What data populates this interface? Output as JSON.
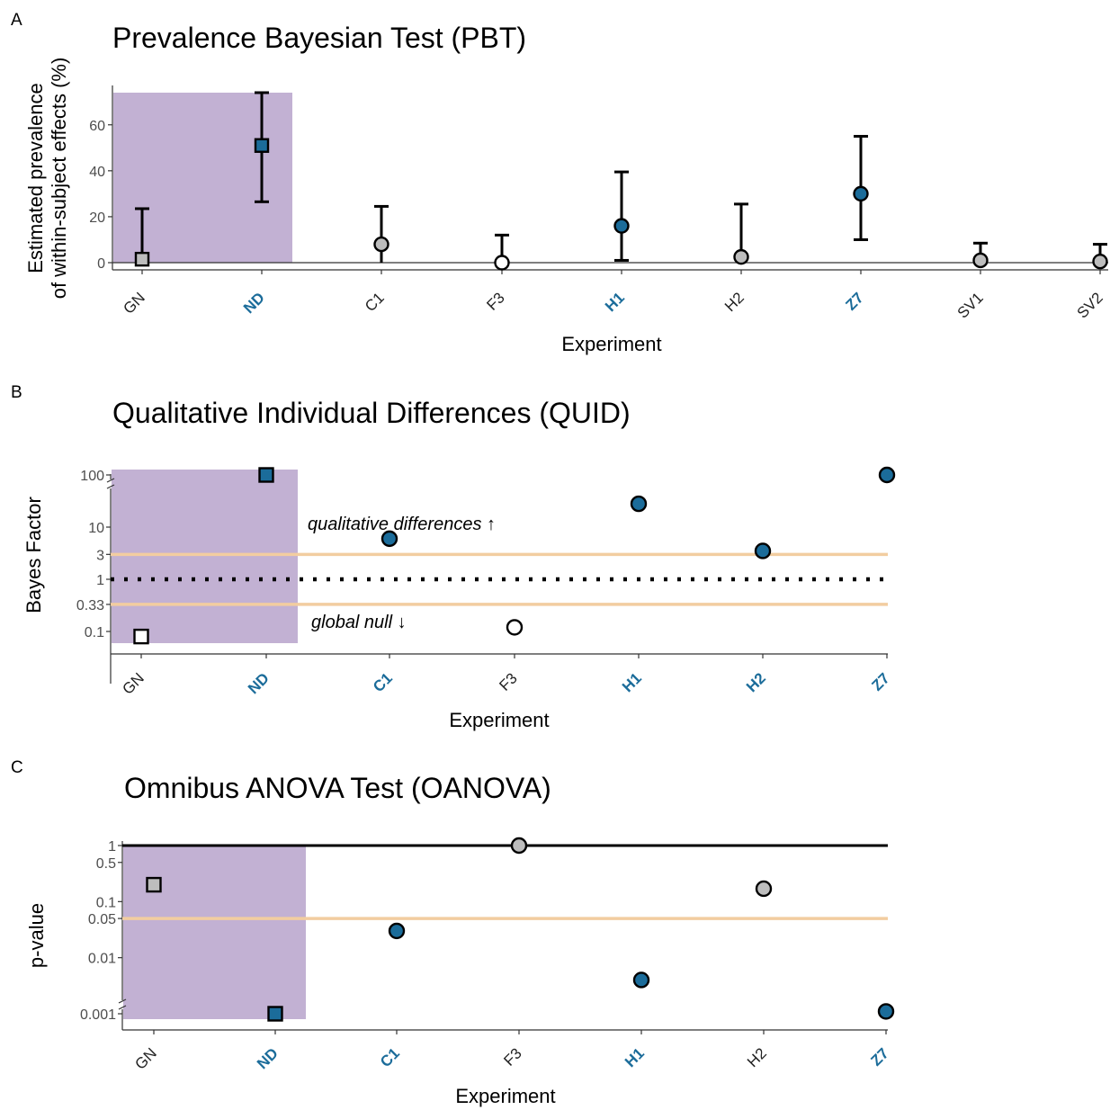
{
  "colors": {
    "shade": "#c2b1d3",
    "significant": "#1b6c9a",
    "nonsignificant": "#bdbdbd",
    "null_point": "#ffffff",
    "threshold_line": "#f2cda0",
    "sig_label": "#1b6c9a",
    "plain_label": "#222222"
  },
  "chart_data": [
    {
      "panel": "A",
      "type": "scatter",
      "title": "Prevalence Bayesian Test (PBT)",
      "xlabel": "Experiment",
      "ylabel_lines": [
        "Estimated prevalence",
        "of within-subject effects (%)"
      ],
      "ylim": [
        -3,
        75
      ],
      "yticks": [
        0,
        20,
        40,
        60
      ],
      "shaded_categories": [
        "GN",
        "ND"
      ],
      "shade_top": 74,
      "reference_line": 0,
      "categories": [
        "GN",
        "ND",
        "C1",
        "F3",
        "H1",
        "H2",
        "Z7",
        "SV1",
        "SV2"
      ],
      "label_significant": [
        false,
        true,
        false,
        false,
        true,
        false,
        true,
        false,
        false
      ],
      "points": [
        {
          "x": "GN",
          "y": 1.5,
          "low": 0,
          "high": 23.5,
          "shape": "square",
          "fill": "nonsignificant"
        },
        {
          "x": "ND",
          "y": 51,
          "low": 26.5,
          "high": 74,
          "shape": "square",
          "fill": "significant"
        },
        {
          "x": "C1",
          "y": 8,
          "low": 0,
          "high": 24.5,
          "shape": "circle",
          "fill": "nonsignificant"
        },
        {
          "x": "F3",
          "y": 0,
          "low": 0,
          "high": 12,
          "shape": "circle",
          "fill": "null_point"
        },
        {
          "x": "H1",
          "y": 16,
          "low": 1,
          "high": 39.5,
          "shape": "circle",
          "fill": "significant"
        },
        {
          "x": "H2",
          "y": 2.5,
          "low": 0,
          "high": 25.5,
          "shape": "circle",
          "fill": "nonsignificant"
        },
        {
          "x": "Z7",
          "y": 30,
          "low": 10,
          "high": 55,
          "shape": "circle",
          "fill": "significant"
        },
        {
          "x": "SV1",
          "y": 1,
          "low": 0,
          "high": 8.5,
          "shape": "circle",
          "fill": "nonsignificant"
        },
        {
          "x": "SV2",
          "y": 0.5,
          "low": 0,
          "high": 8,
          "shape": "circle",
          "fill": "nonsignificant"
        }
      ]
    },
    {
      "panel": "B",
      "type": "scatter",
      "title": "Qualitative Individual Differences (QUID)",
      "xlabel": "Experiment",
      "ylabel": "Bayes Factor",
      "scale": "log10",
      "ylim": [
        0.06,
        150
      ],
      "yticks": [
        0.1,
        0.33,
        1,
        3,
        10,
        100
      ],
      "ytick_labels": [
        "0.1",
        "0.33",
        "1",
        "3",
        "10",
        "100"
      ],
      "axis_break_at": 100,
      "shaded_categories": [
        "GN",
        "ND"
      ],
      "threshold_lines": [
        3,
        0.33
      ],
      "reference_line": 1,
      "annotations": [
        "qualitative differences ↑",
        "global null ↓"
      ],
      "categories": [
        "GN",
        "ND",
        "C1",
        "F3",
        "H1",
        "H2",
        "Z7"
      ],
      "label_significant": [
        false,
        true,
        true,
        false,
        true,
        true,
        true
      ],
      "points": [
        {
          "x": "GN",
          "y": 0.08,
          "shape": "square",
          "fill": "null_point"
        },
        {
          "x": "ND",
          "y": 100,
          "shape": "square",
          "fill": "significant"
        },
        {
          "x": "C1",
          "y": 6,
          "shape": "circle",
          "fill": "significant"
        },
        {
          "x": "F3",
          "y": 0.12,
          "shape": "circle",
          "fill": "null_point"
        },
        {
          "x": "H1",
          "y": 28,
          "shape": "circle",
          "fill": "significant"
        },
        {
          "x": "H2",
          "y": 3.5,
          "shape": "circle",
          "fill": "significant"
        },
        {
          "x": "Z7",
          "y": 100,
          "shape": "circle",
          "fill": "significant"
        }
      ]
    },
    {
      "panel": "C",
      "type": "scatter",
      "title": "Omnibus ANOVA Test (OANOVA)",
      "xlabel": "Experiment",
      "ylabel": "p-value",
      "scale": "log10",
      "ylim": [
        0.0005,
        1.3
      ],
      "yticks": [
        0.001,
        0.01,
        0.05,
        0.1,
        0.5,
        1
      ],
      "ytick_labels": [
        "0.001",
        "0.01",
        "0.05",
        "0.1",
        "0.5",
        "1"
      ],
      "axis_break_at": 0.001,
      "shaded_categories": [
        "GN",
        "ND"
      ],
      "threshold_lines": [
        0.05
      ],
      "reference_line": 1,
      "categories": [
        "GN",
        "ND",
        "C1",
        "F3",
        "H1",
        "H2",
        "Z7"
      ],
      "label_significant": [
        false,
        true,
        true,
        false,
        true,
        false,
        true
      ],
      "points": [
        {
          "x": "GN",
          "y": 0.2,
          "shape": "square",
          "fill": "nonsignificant"
        },
        {
          "x": "ND",
          "y": 0.001,
          "shape": "square",
          "fill": "significant"
        },
        {
          "x": "C1",
          "y": 0.03,
          "shape": "circle",
          "fill": "significant"
        },
        {
          "x": "F3",
          "y": 1,
          "shape": "circle",
          "fill": "nonsignificant"
        },
        {
          "x": "H1",
          "y": 0.004,
          "shape": "circle",
          "fill": "significant"
        },
        {
          "x": "H2",
          "y": 0.17,
          "shape": "circle",
          "fill": "nonsignificant"
        },
        {
          "x": "Z7",
          "y": 0.0011,
          "shape": "circle",
          "fill": "significant"
        }
      ]
    }
  ]
}
